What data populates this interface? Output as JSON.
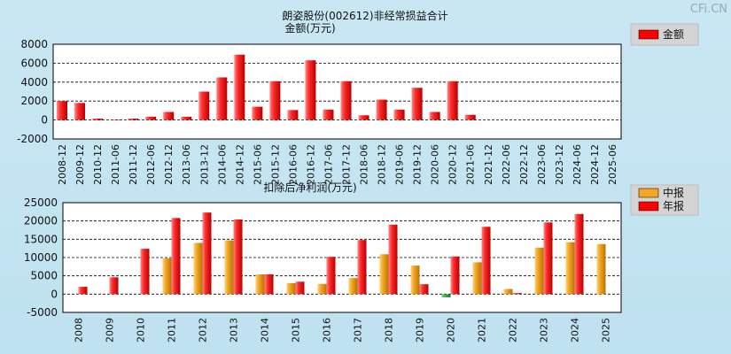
{
  "watermark": "CFi.CN",
  "chart_data": [
    {
      "type": "bar",
      "title": "朗姿股份(002612)非经常损益合计",
      "subtitle": "金额(万元)",
      "legend": [
        {
          "label": "金额",
          "color": "#ff0000"
        }
      ],
      "legend_position": "top-right",
      "ylim": [
        -2000,
        8000
      ],
      "yticks": [
        -2000,
        0,
        2000,
        4000,
        6000,
        8000
      ],
      "ytick_labels": [
        "-2000",
        "0",
        "2000",
        "4000",
        "6000",
        "8000"
      ],
      "grid": true,
      "categories": [
        "2008-12",
        "2009-12",
        "2010-12",
        "2011-06",
        "2011-12",
        "2012-06",
        "2012-12",
        "2013-06",
        "2013-12",
        "2014-06",
        "2014-12",
        "2015-06",
        "2015-12",
        "2016-06",
        "2016-12",
        "2017-06",
        "2017-12",
        "2018-06",
        "2018-12",
        "2019-06",
        "2019-12",
        "2020-06",
        "2020-12",
        "2021-06",
        "2021-12",
        "2022-06",
        "2022-12",
        "2023-06",
        "2023-12",
        "2024-06",
        "2024-12",
        "2025-06"
      ],
      "values": [
        2000,
        1800,
        150,
        50,
        150,
        350,
        850,
        350,
        3000,
        4500,
        6900,
        1400,
        4100,
        1050,
        6300,
        1100,
        4100,
        500,
        2150,
        1100,
        3400,
        850,
        4100,
        550,
        0,
        0,
        0,
        0,
        0,
        0,
        0,
        0
      ]
    },
    {
      "type": "bar",
      "title": "扣除后净利润(万元)",
      "legend": [
        {
          "label": "中报",
          "color": "#f5a623"
        },
        {
          "label": "年报",
          "color": "#ff0000"
        }
      ],
      "legend_position": "top-right",
      "ylim": [
        -5000,
        25000
      ],
      "yticks": [
        -5000,
        0,
        5000,
        10000,
        15000,
        20000,
        25000
      ],
      "ytick_labels": [
        "-5000",
        "0",
        "5000",
        "10000",
        "15000",
        "20000",
        "25000"
      ],
      "grid": true,
      "categories": [
        "2008",
        "2009",
        "2010",
        "2011",
        "2012",
        "2013",
        "2014",
        "2015",
        "2016",
        "2017",
        "2018",
        "2019",
        "2020",
        "2021",
        "2022",
        "2023",
        "2024",
        "2025"
      ],
      "series": [
        {
          "name": "中报",
          "values": [
            null,
            null,
            null,
            9800,
            14000,
            14700,
            5400,
            3000,
            2800,
            4400,
            10900,
            7800,
            -900,
            8700,
            1400,
            12700,
            14200,
            13700
          ]
        },
        {
          "name": "年报",
          "values": [
            2000,
            4600,
            12400,
            20800,
            22300,
            20400,
            5400,
            3400,
            10200,
            14800,
            19000,
            2700,
            10300,
            18400,
            300,
            19600,
            21900,
            null
          ]
        }
      ]
    }
  ]
}
